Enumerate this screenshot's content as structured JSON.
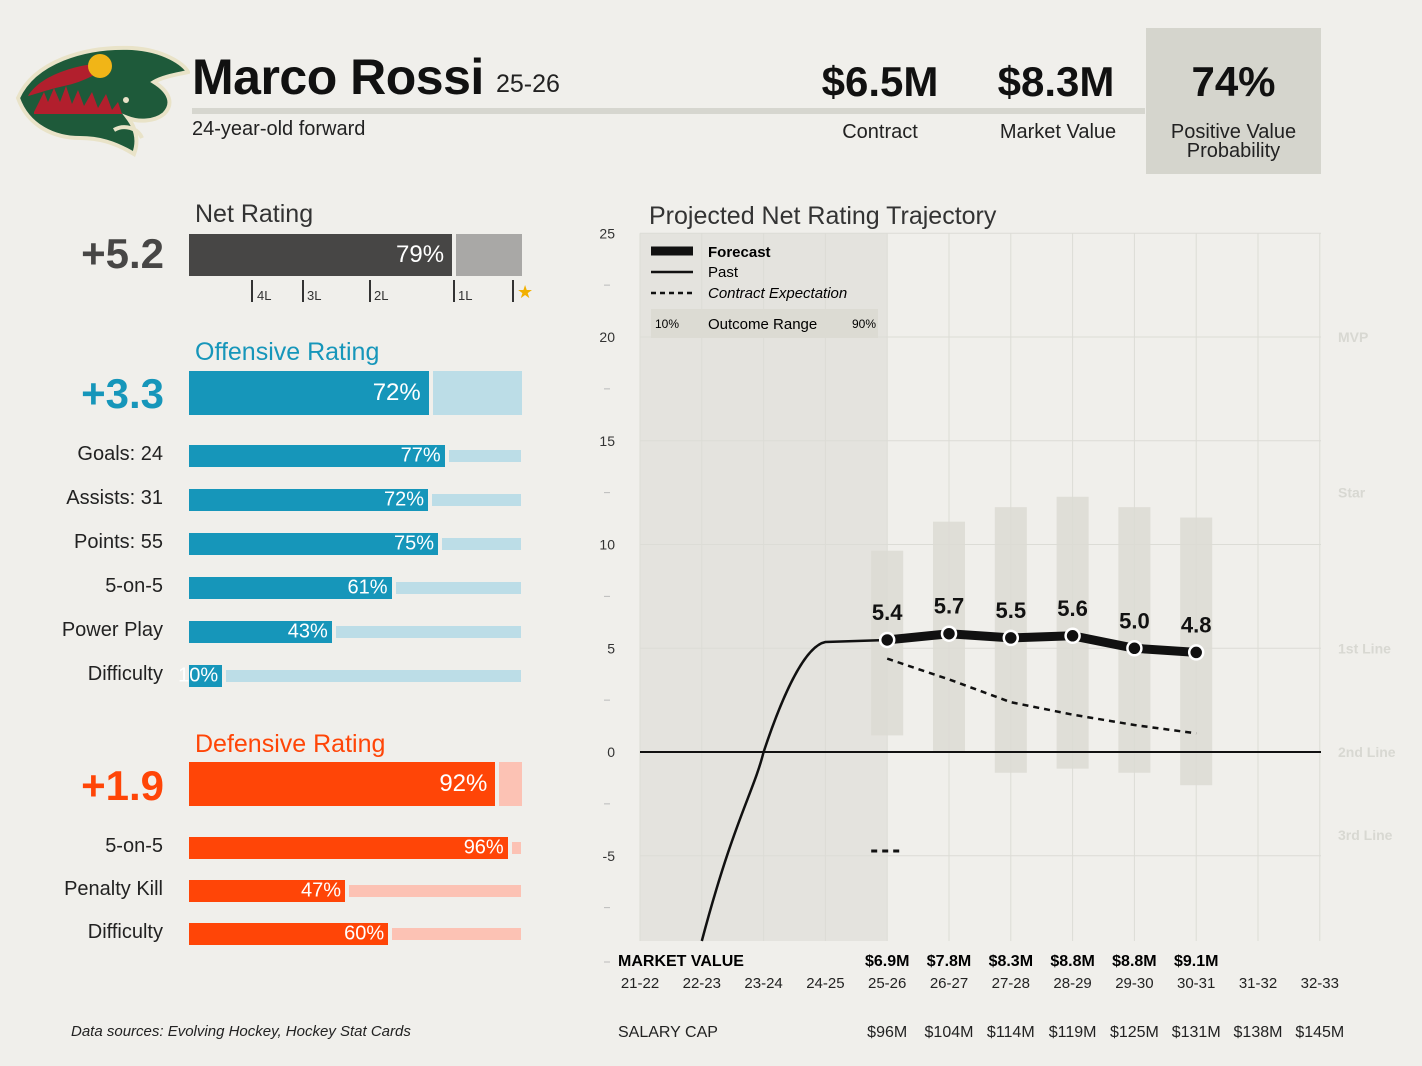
{
  "player": {
    "name": "Marco Rossi",
    "season": "25-26",
    "subtitle": "24-year-old forward"
  },
  "headline": {
    "contract_value": "$6.5M",
    "contract_label": "Contract",
    "market_value": "$8.3M",
    "market_label": "Market Value",
    "pvp_value": "74%",
    "pvp_label_1": "Positive Value",
    "pvp_label_2": "Probability"
  },
  "net": {
    "title": "Net Rating",
    "value": "+5.2",
    "pct": 79,
    "pct_label": "79%",
    "scale": [
      "4L",
      "3L",
      "2L",
      "1L"
    ],
    "star_glyph": "★",
    "colors": {
      "bar": "#474645",
      "rest": "#a9a8a6",
      "star": "#f2b000"
    }
  },
  "offense": {
    "title": "Offensive Rating",
    "value": "+3.3",
    "pct": 72,
    "pct_label": "72%",
    "color": "#1696ba",
    "rest_color": "#bcdde7",
    "rows": [
      {
        "label": "Goals: 24",
        "pct": 77,
        "pct_label": "77%"
      },
      {
        "label": "Assists: 31",
        "pct": 72,
        "pct_label": "72%"
      },
      {
        "label": "Points: 55",
        "pct": 75,
        "pct_label": "75%"
      },
      {
        "label": "5-on-5",
        "pct": 61,
        "pct_label": "61%"
      },
      {
        "label": "Power Play",
        "pct": 43,
        "pct_label": "43%"
      },
      {
        "label": "Difficulty",
        "pct": 10,
        "pct_label": "10%"
      }
    ]
  },
  "defense": {
    "title": "Defensive Rating",
    "value": "+1.9",
    "pct": 92,
    "pct_label": "92%",
    "color": "#ff4507",
    "rest_color": "#fcc2b4",
    "rows": [
      {
        "label": "5-on-5",
        "pct": 96,
        "pct_label": "96%"
      },
      {
        "label": "Penalty Kill",
        "pct": 47,
        "pct_label": "47%"
      },
      {
        "label": "Difficulty",
        "pct": 60,
        "pct_label": "60%"
      }
    ]
  },
  "footer": {
    "sources": "Data sources: Evolving Hockey, Hockey Stat Cards"
  },
  "chart_data": {
    "type": "line",
    "title": "Projected Net Rating Trajectory",
    "ylim": [
      -9,
      25
    ],
    "y_ticks": [
      -5,
      0,
      5,
      10,
      15,
      20,
      25
    ],
    "x": [
      "21-22",
      "22-23",
      "23-24",
      "24-25",
      "25-26",
      "26-27",
      "27-28",
      "28-29",
      "29-30",
      "30-31",
      "31-32",
      "32-33"
    ],
    "grid": true,
    "legend": {
      "placement": "top-left",
      "forecast": "Forecast",
      "past": "Past",
      "contract": "Contract Expectation",
      "range_low": "10%",
      "range_label": "Outcome Range",
      "range_high": "90%"
    },
    "tiers": [
      {
        "label": "MVP",
        "y": 20
      },
      {
        "label": "Star",
        "y": 12.5
      },
      {
        "label": "1st Line",
        "y": 5
      },
      {
        "label": "2nd Line",
        "y": 0
      },
      {
        "label": "3rd Line",
        "y": -4
      }
    ],
    "series": [
      {
        "name": "Past",
        "points": [
          [
            "22-23",
            -9
          ],
          [
            "23-24",
            0
          ],
          [
            "24-25",
            5.3
          ],
          [
            "25-26",
            5.4
          ]
        ]
      },
      {
        "name": "Forecast",
        "points": [
          [
            "25-26",
            5.4
          ],
          [
            "26-27",
            5.7
          ],
          [
            "27-28",
            5.5
          ],
          [
            "28-29",
            5.6
          ],
          [
            "29-30",
            5.0
          ],
          [
            "30-31",
            4.8
          ]
        ],
        "labels": [
          "5.4",
          "5.7",
          "5.5",
          "5.6",
          "5.0",
          "4.8"
        ]
      },
      {
        "name": "Contract Expectation",
        "points": [
          [
            "25-26",
            4.5
          ],
          [
            "26-27",
            3.5
          ],
          [
            "27-28",
            2.4
          ],
          [
            "28-29",
            1.8
          ],
          [
            "29-30",
            1.3
          ],
          [
            "30-31",
            0.9
          ]
        ]
      }
    ],
    "outcome_range": [
      {
        "x": "25-26",
        "low": 0.8,
        "high": 9.7
      },
      {
        "x": "26-27",
        "low": 0.0,
        "high": 11.1
      },
      {
        "x": "27-28",
        "low": -1.0,
        "high": 11.8
      },
      {
        "x": "28-29",
        "low": -0.8,
        "high": 12.3
      },
      {
        "x": "29-30",
        "low": -1.0,
        "high": 11.8
      },
      {
        "x": "30-31",
        "low": -1.6,
        "high": 11.3
      }
    ],
    "market_value_label": "MARKET VALUE",
    "market_values": [
      {
        "x": "25-26",
        "v": "$6.9M"
      },
      {
        "x": "26-27",
        "v": "$7.8M"
      },
      {
        "x": "27-28",
        "v": "$8.3M"
      },
      {
        "x": "28-29",
        "v": "$8.8M"
      },
      {
        "x": "29-30",
        "v": "$8.8M"
      },
      {
        "x": "30-31",
        "v": "$9.1M"
      }
    ],
    "salary_cap_label": "SALARY CAP",
    "salary_caps": [
      {
        "x": "25-26",
        "v": "$96M"
      },
      {
        "x": "26-27",
        "v": "$104M"
      },
      {
        "x": "27-28",
        "v": "$114M"
      },
      {
        "x": "28-29",
        "v": "$119M"
      },
      {
        "x": "29-30",
        "v": "$125M"
      },
      {
        "x": "30-31",
        "v": "$131M"
      },
      {
        "x": "31-32",
        "v": "$138M"
      },
      {
        "x": "32-33",
        "v": "$145M"
      }
    ]
  }
}
